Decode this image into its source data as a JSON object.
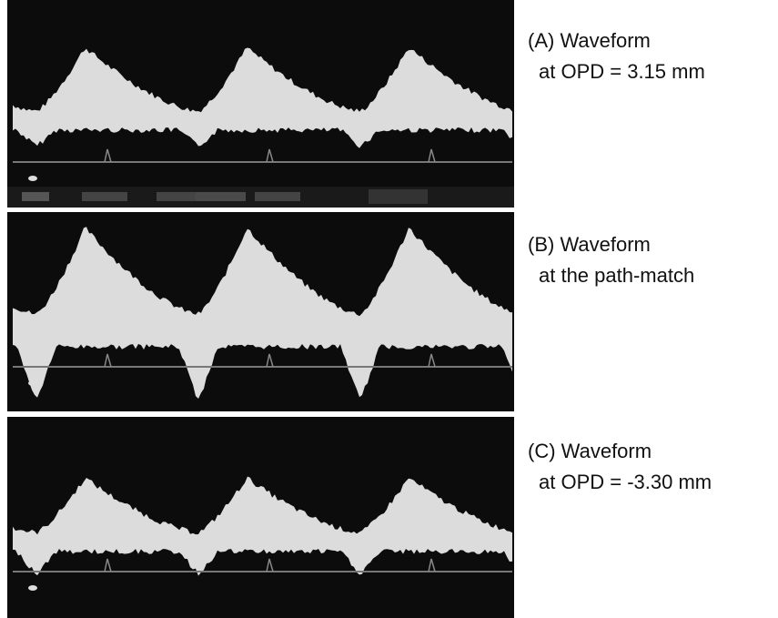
{
  "panels": [
    {
      "label": "(A) Waveform",
      "caption": "at OPD = 3.15 mm"
    },
    {
      "label": "(B) Waveform",
      "caption": "at the path-match"
    },
    {
      "label": "(C) Waveform",
      "caption": "at OPD = -3.30 mm"
    }
  ]
}
